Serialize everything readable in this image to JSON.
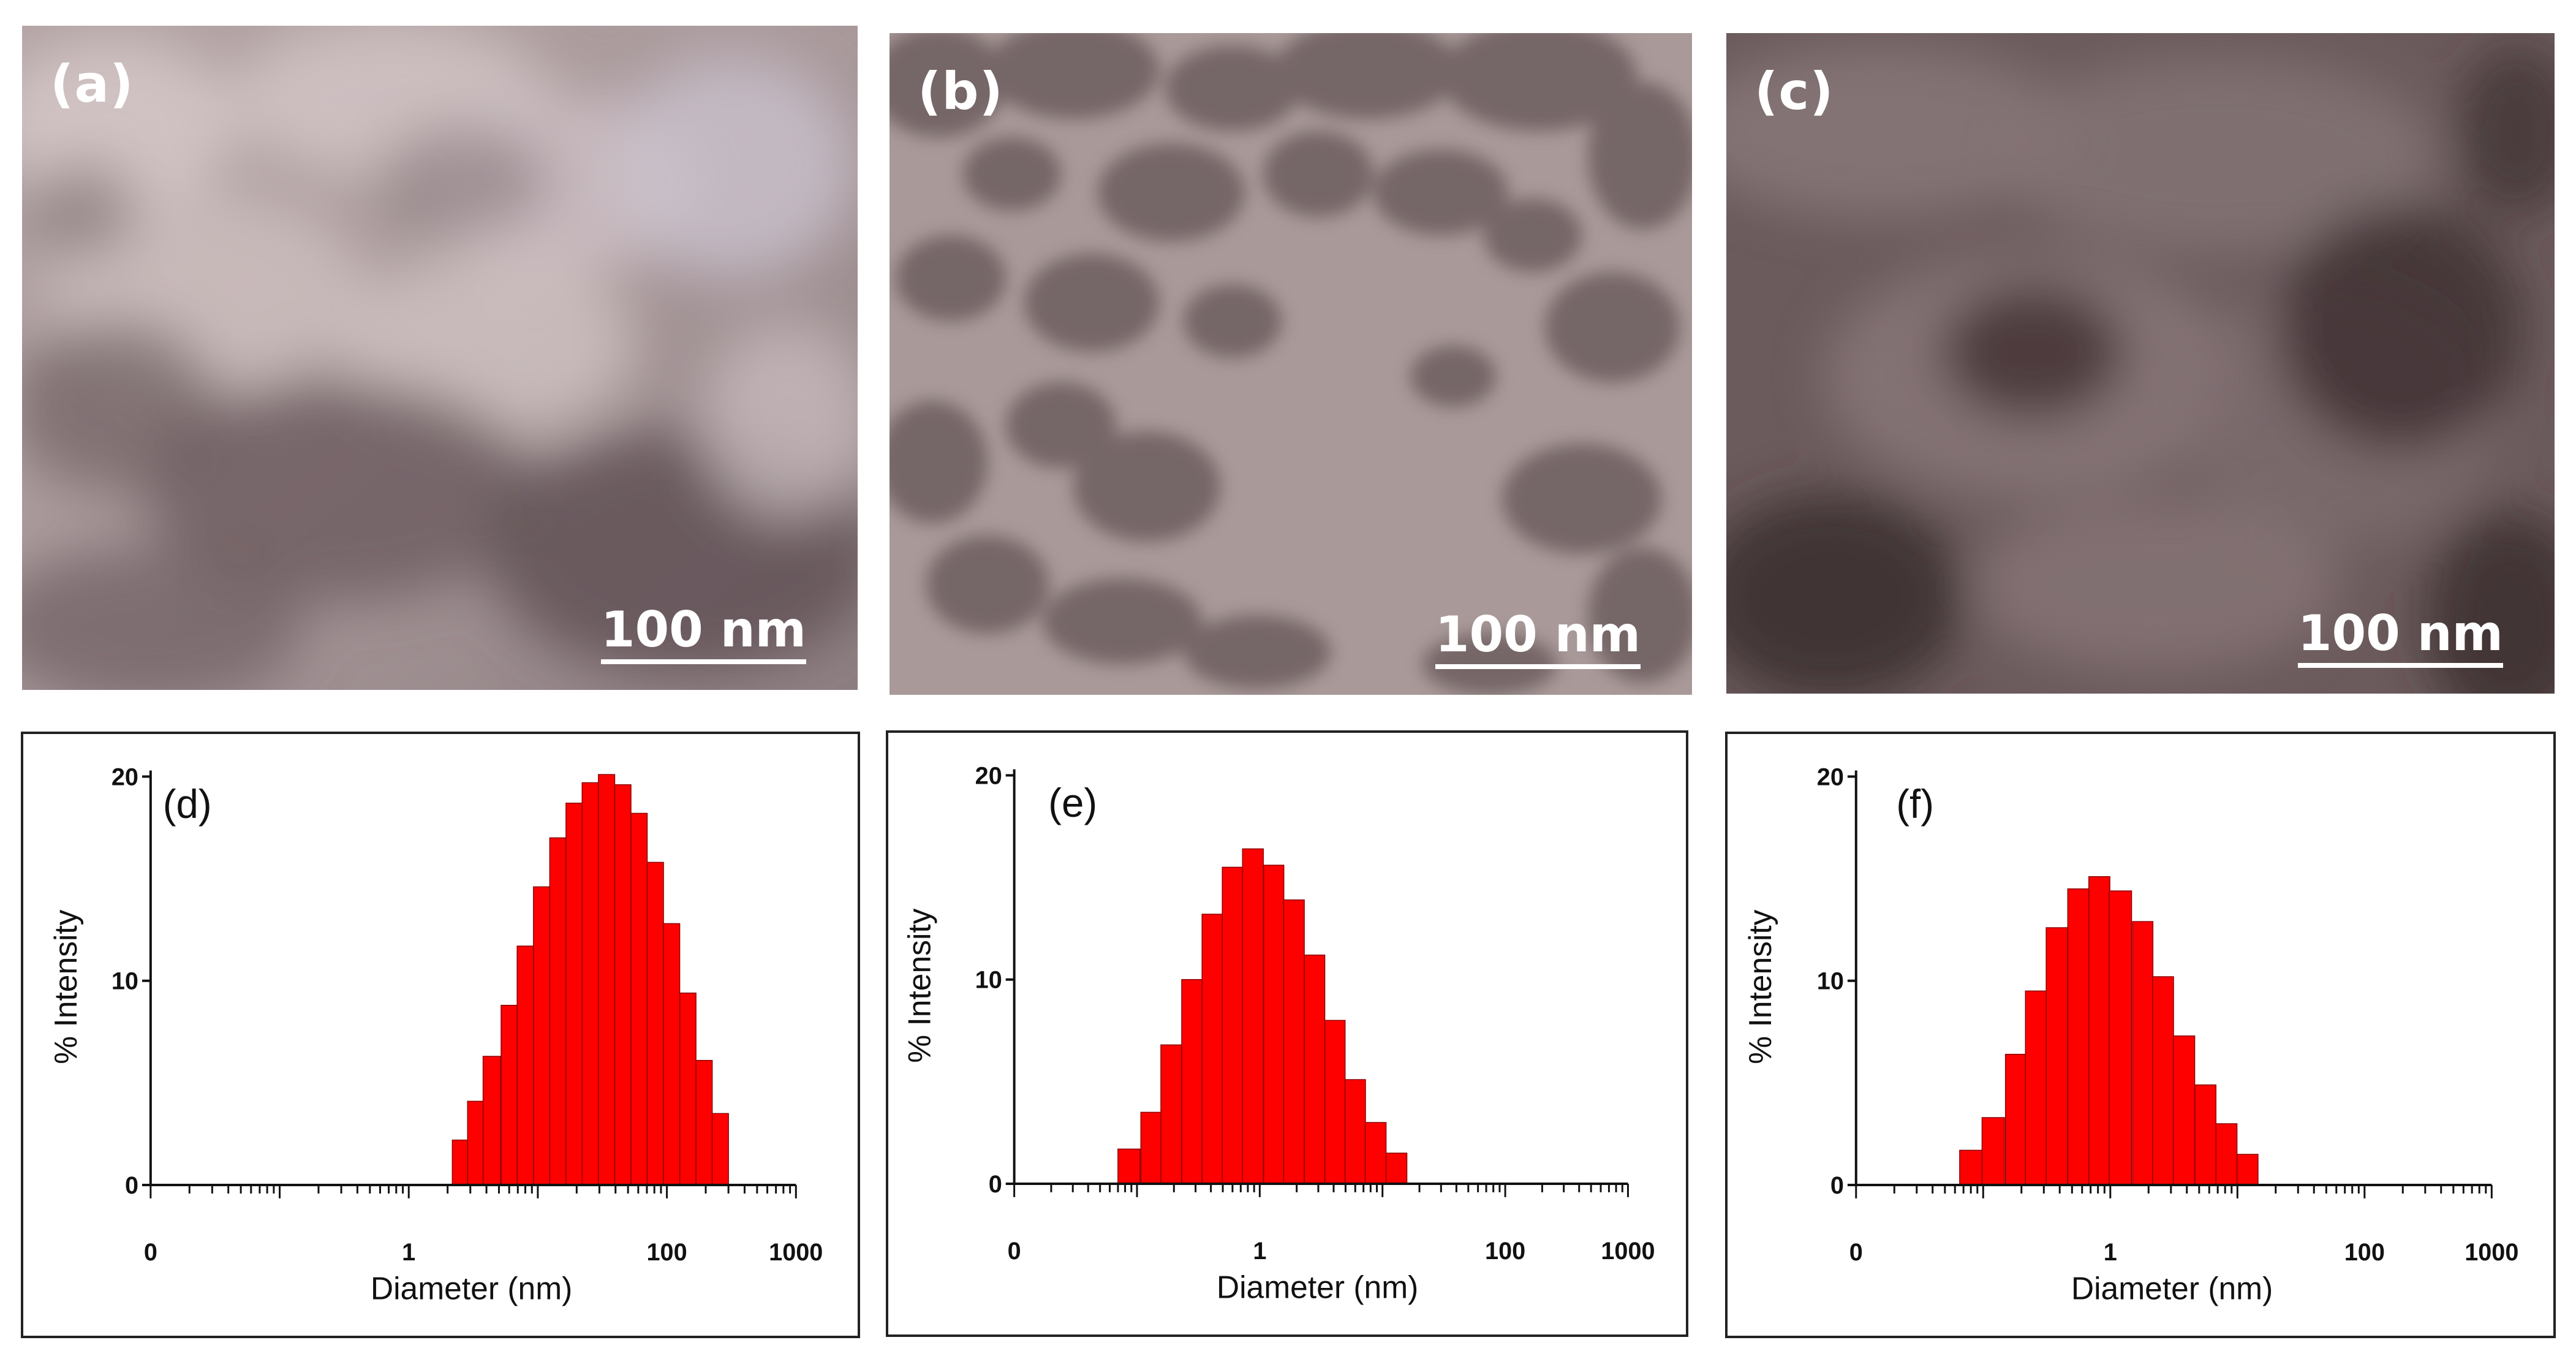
{
  "tem_panels": [
    {
      "label": "(a)",
      "scale_bar": "100 nm",
      "tone": "light"
    },
    {
      "label": "(b)",
      "scale_bar": "100 nm",
      "tone": "dispersed"
    },
    {
      "label": "(c)",
      "scale_bar": "100 nm",
      "tone": "dark"
    }
  ],
  "chart_data": [
    {
      "type": "bar",
      "panel_label": "(d)",
      "xlabel": "Diameter (nm)",
      "ylabel": "% Intensity",
      "x_scale": "log",
      "x_tick_labels": [
        "0",
        "1",
        "100",
        "1000"
      ],
      "x_tick_values": [
        0.01,
        1,
        100,
        1000
      ],
      "y_ticks": [
        0,
        10,
        20
      ],
      "ylim": [
        0,
        20
      ],
      "bar_color": "#ff0000",
      "bins": [
        {
          "x": 2.5,
          "value": 2.2
        },
        {
          "x": 3.3,
          "value": 4.1
        },
        {
          "x": 4.4,
          "value": 6.3
        },
        {
          "x": 6.0,
          "value": 8.8
        },
        {
          "x": 8.0,
          "value": 11.7
        },
        {
          "x": 10.7,
          "value": 14.6
        },
        {
          "x": 14.3,
          "value": 17.0
        },
        {
          "x": 19.1,
          "value": 18.7
        },
        {
          "x": 25.5,
          "value": 19.7
        },
        {
          "x": 34.1,
          "value": 20.1
        },
        {
          "x": 45.6,
          "value": 19.6
        },
        {
          "x": 60.9,
          "value": 18.2
        },
        {
          "x": 81.4,
          "value": 15.8
        },
        {
          "x": 108.8,
          "value": 12.8
        },
        {
          "x": 145.4,
          "value": 9.4
        },
        {
          "x": 194.3,
          "value": 6.1
        },
        {
          "x": 259.6,
          "value": 3.5
        }
      ]
    },
    {
      "type": "bar",
      "panel_label": "(e)",
      "xlabel": "Diameter (nm)",
      "ylabel": "% Intensity",
      "x_scale": "log",
      "x_tick_labels": [
        "0",
        "1",
        "100",
        "1000"
      ],
      "x_tick_values": [
        0.01,
        1,
        100,
        1000
      ],
      "y_ticks": [
        0,
        10,
        20
      ],
      "ylim": [
        0,
        20
      ],
      "bar_color": "#ff0000",
      "bins": [
        {
          "x": 0.086,
          "value": 1.7
        },
        {
          "x": 0.13,
          "value": 3.5
        },
        {
          "x": 0.19,
          "value": 6.8
        },
        {
          "x": 0.28,
          "value": 10.0
        },
        {
          "x": 0.41,
          "value": 13.2
        },
        {
          "x": 0.6,
          "value": 15.5
        },
        {
          "x": 0.88,
          "value": 16.4
        },
        {
          "x": 1.3,
          "value": 15.6
        },
        {
          "x": 1.9,
          "value": 13.9
        },
        {
          "x": 2.8,
          "value": 11.2
        },
        {
          "x": 4.1,
          "value": 8.0
        },
        {
          "x": 6.0,
          "value": 5.1
        },
        {
          "x": 8.8,
          "value": 3.0
        },
        {
          "x": 13.0,
          "value": 1.5
        }
      ]
    },
    {
      "type": "bar",
      "panel_label": "(f)",
      "xlabel": "Diameter (nm)",
      "ylabel": "% Intensity",
      "x_scale": "log",
      "x_tick_labels": [
        "0",
        "1",
        "100",
        "1000"
      ],
      "x_tick_values": [
        0.01,
        1,
        100,
        1000
      ],
      "y_ticks": [
        0,
        10,
        20
      ],
      "ylim": [
        0,
        20
      ],
      "bar_color": "#ff0000",
      "bins": [
        {
          "x": 0.08,
          "value": 1.7
        },
        {
          "x": 0.12,
          "value": 3.3
        },
        {
          "x": 0.18,
          "value": 6.4
        },
        {
          "x": 0.26,
          "value": 9.5
        },
        {
          "x": 0.38,
          "value": 12.6
        },
        {
          "x": 0.56,
          "value": 14.5
        },
        {
          "x": 0.82,
          "value": 15.1
        },
        {
          "x": 1.2,
          "value": 14.4
        },
        {
          "x": 1.8,
          "value": 12.9
        },
        {
          "x": 2.6,
          "value": 10.2
        },
        {
          "x": 3.8,
          "value": 7.3
        },
        {
          "x": 5.6,
          "value": 4.9
        },
        {
          "x": 8.2,
          "value": 3.0
        },
        {
          "x": 12.0,
          "value": 1.5
        }
      ]
    }
  ]
}
